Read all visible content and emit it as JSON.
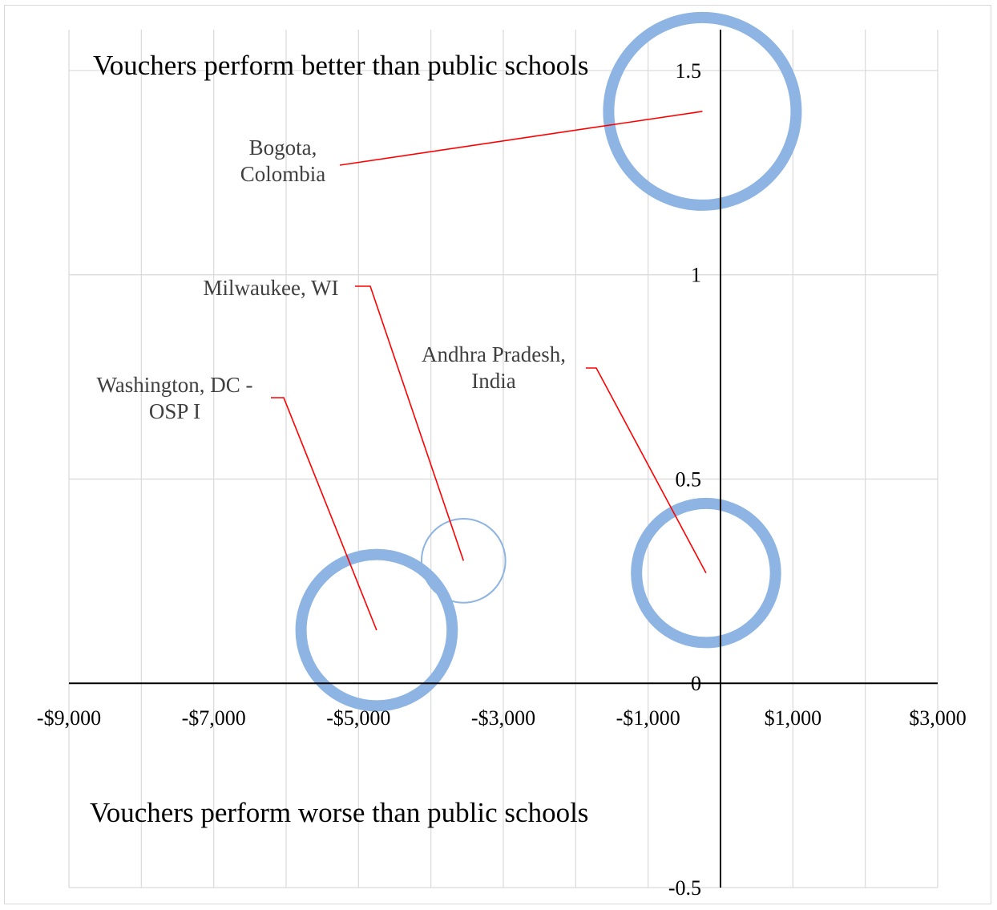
{
  "chart_data": {
    "type": "bubble",
    "x_ticks": [
      "-$9,000",
      "-$7,000",
      "-$5,000",
      "-$3,000",
      "-$1,000",
      "$1,000",
      "$3,000"
    ],
    "x_tick_values": [
      -9000,
      -7000,
      -5000,
      -3000,
      -1000,
      1000,
      3000
    ],
    "y_ticks": [
      "-0.5",
      "0",
      "0.5",
      "1",
      "1.5"
    ],
    "y_tick_values": [
      -0.5,
      0,
      0.5,
      1,
      1.5
    ],
    "xlim": [
      -9000,
      3000
    ],
    "ylim": [
      -0.5,
      1.6
    ],
    "grid": true,
    "annotations": {
      "top": "Vouchers perform better than public schools",
      "bottom": "Vouchers perform worse than public schools"
    },
    "points": [
      {
        "label": [
          "Bogota,",
          "Colombia"
        ],
        "x": -250,
        "y": 1.4,
        "size": 1.0
      },
      {
        "label": [
          "Milwaukee, WI"
        ],
        "x": -3550,
        "y": 0.3,
        "size": 0.2
      },
      {
        "label": [
          "Andhra Pradesh,",
          "India"
        ],
        "x": -200,
        "y": 0.27,
        "size": 0.55
      },
      {
        "label": [
          "Washington, DC -",
          "OSP I"
        ],
        "x": -4750,
        "y": 0.13,
        "size": 0.65
      }
    ],
    "colors": {
      "bubble": "#8db4e2",
      "leader_line": "#ff0000",
      "axis": "#000000",
      "grid": "#d9d9d9"
    }
  }
}
